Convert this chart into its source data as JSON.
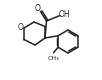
{
  "bg_color": "#ffffff",
  "line_color": "#222222",
  "lw": 1.1,
  "figsize": [
    1.02,
    0.8
  ],
  "dpi": 100,
  "xlim": [
    0,
    10.2
  ],
  "ylim": [
    0,
    8.0
  ]
}
